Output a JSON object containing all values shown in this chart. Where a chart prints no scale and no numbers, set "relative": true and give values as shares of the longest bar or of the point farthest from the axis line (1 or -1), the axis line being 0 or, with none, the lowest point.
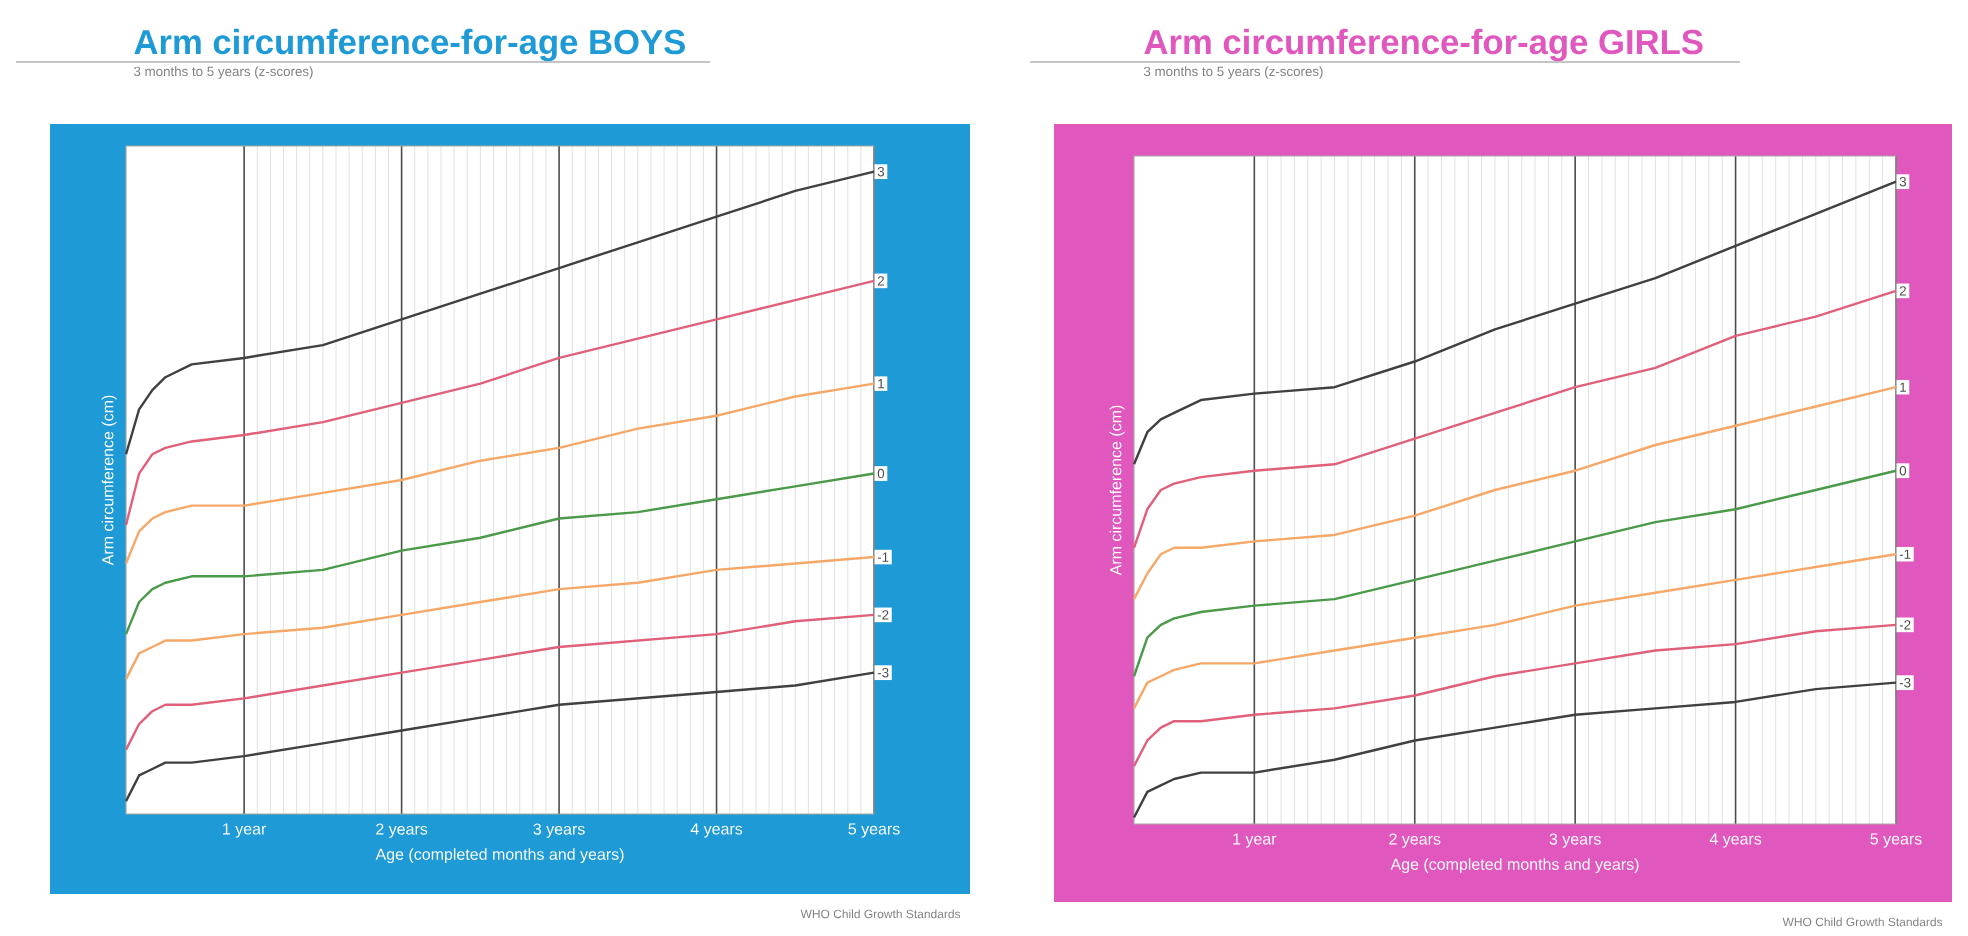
{
  "chart_data": [
    {
      "type": "line",
      "title": "Arm circumference-for-age BOYS",
      "subtitle": "3 months to 5 years (z-scores)",
      "xlabel": "Age (completed months and years)",
      "ylabel": "Arm circumference (cm)",
      "relative": true,
      "grid": "x",
      "xlim": [
        0.25,
        5
      ],
      "xticks": [
        {
          "value": 1,
          "label": "1 year"
        },
        {
          "value": 2,
          "label": "2 years"
        },
        {
          "value": 3,
          "label": "3 years"
        },
        {
          "value": 4,
          "label": "4 years"
        },
        {
          "value": 5,
          "label": "5 years"
        }
      ],
      "x": [
        0.25,
        0.333,
        0.417,
        0.5,
        0.667,
        1,
        1.5,
        2,
        2.5,
        3,
        3.5,
        4,
        4.5,
        5
      ],
      "annotations": [
        "WHO Child Growth Standards"
      ],
      "series": [
        {
          "name": "3",
          "color": "#404040",
          "values": [
            0.56,
            0.63,
            0.66,
            0.68,
            0.7,
            0.71,
            0.73,
            0.77,
            0.81,
            0.85,
            0.89,
            0.93,
            0.97,
            1.0
          ]
        },
        {
          "name": "2",
          "color": "#e0607a",
          "values": [
            0.45,
            0.53,
            0.56,
            0.57,
            0.58,
            0.59,
            0.61,
            0.64,
            0.67,
            0.71,
            0.74,
            0.77,
            0.8,
            0.83
          ]
        },
        {
          "name": "1",
          "color": "#f5a868",
          "values": [
            0.39,
            0.44,
            0.46,
            0.47,
            0.48,
            0.48,
            0.5,
            0.52,
            0.55,
            0.57,
            0.6,
            0.62,
            0.65,
            0.67
          ]
        },
        {
          "name": "0",
          "color": "#4a9a4a",
          "values": [
            0.28,
            0.33,
            0.35,
            0.36,
            0.37,
            0.37,
            0.38,
            0.41,
            0.43,
            0.46,
            0.47,
            0.49,
            0.51,
            0.53
          ]
        },
        {
          "name": "-1",
          "color": "#f5a868",
          "values": [
            0.21,
            0.25,
            0.26,
            0.27,
            0.27,
            0.28,
            0.29,
            0.31,
            0.33,
            0.35,
            0.36,
            0.38,
            0.39,
            0.4
          ]
        },
        {
          "name": "-2",
          "color": "#e0607a",
          "values": [
            0.1,
            0.14,
            0.16,
            0.17,
            0.17,
            0.18,
            0.2,
            0.22,
            0.24,
            0.26,
            0.27,
            0.28,
            0.3,
            0.31
          ]
        },
        {
          "name": "-3",
          "color": "#404040",
          "values": [
            0.02,
            0.06,
            0.07,
            0.08,
            0.08,
            0.09,
            0.11,
            0.13,
            0.15,
            0.17,
            0.18,
            0.19,
            0.2,
            0.22
          ]
        }
      ]
    },
    {
      "type": "line",
      "title": "Arm circumference-for-age GIRLS",
      "subtitle": "3 months to 5 years (z-scores)",
      "xlabel": "Age (completed months and years)",
      "ylabel": "Arm circumference (cm)",
      "relative": true,
      "grid": "x",
      "xlim": [
        0.25,
        5
      ],
      "xticks": [
        {
          "value": 1,
          "label": "1 year"
        },
        {
          "value": 2,
          "label": "2 years"
        },
        {
          "value": 3,
          "label": "3 years"
        },
        {
          "value": 4,
          "label": "4 years"
        },
        {
          "value": 5,
          "label": "5 years"
        }
      ],
      "x": [
        0.25,
        0.333,
        0.417,
        0.5,
        0.667,
        1,
        1.5,
        2,
        2.5,
        3,
        3.5,
        4,
        4.5,
        5
      ],
      "annotations": [
        "WHO Child Growth Standards"
      ],
      "series": [
        {
          "name": "3",
          "color": "#404040",
          "values": [
            0.56,
            0.61,
            0.63,
            0.64,
            0.66,
            0.67,
            0.68,
            0.72,
            0.77,
            0.81,
            0.85,
            0.9,
            0.95,
            1.0
          ]
        },
        {
          "name": "2",
          "color": "#e0607a",
          "values": [
            0.43,
            0.49,
            0.52,
            0.53,
            0.54,
            0.55,
            0.56,
            0.6,
            0.64,
            0.68,
            0.71,
            0.76,
            0.79,
            0.83
          ]
        },
        {
          "name": "1",
          "color": "#f5a868",
          "values": [
            0.35,
            0.39,
            0.42,
            0.43,
            0.43,
            0.44,
            0.45,
            0.48,
            0.52,
            0.55,
            0.59,
            0.62,
            0.65,
            0.68
          ]
        },
        {
          "name": "0",
          "color": "#4a9a4a",
          "values": [
            0.23,
            0.29,
            0.31,
            0.32,
            0.33,
            0.34,
            0.35,
            0.38,
            0.41,
            0.44,
            0.47,
            0.49,
            0.52,
            0.55
          ]
        },
        {
          "name": "-1",
          "color": "#f5a868",
          "values": [
            0.18,
            0.22,
            0.23,
            0.24,
            0.25,
            0.25,
            0.27,
            0.29,
            0.31,
            0.34,
            0.36,
            0.38,
            0.4,
            0.42
          ]
        },
        {
          "name": "-2",
          "color": "#e0607a",
          "values": [
            0.09,
            0.13,
            0.15,
            0.16,
            0.16,
            0.17,
            0.18,
            0.2,
            0.23,
            0.25,
            0.27,
            0.28,
            0.3,
            0.31
          ]
        },
        {
          "name": "-3",
          "color": "#404040",
          "values": [
            0.01,
            0.05,
            0.06,
            0.07,
            0.08,
            0.08,
            0.1,
            0.13,
            0.15,
            0.17,
            0.18,
            0.19,
            0.21,
            0.22
          ]
        }
      ]
    }
  ]
}
